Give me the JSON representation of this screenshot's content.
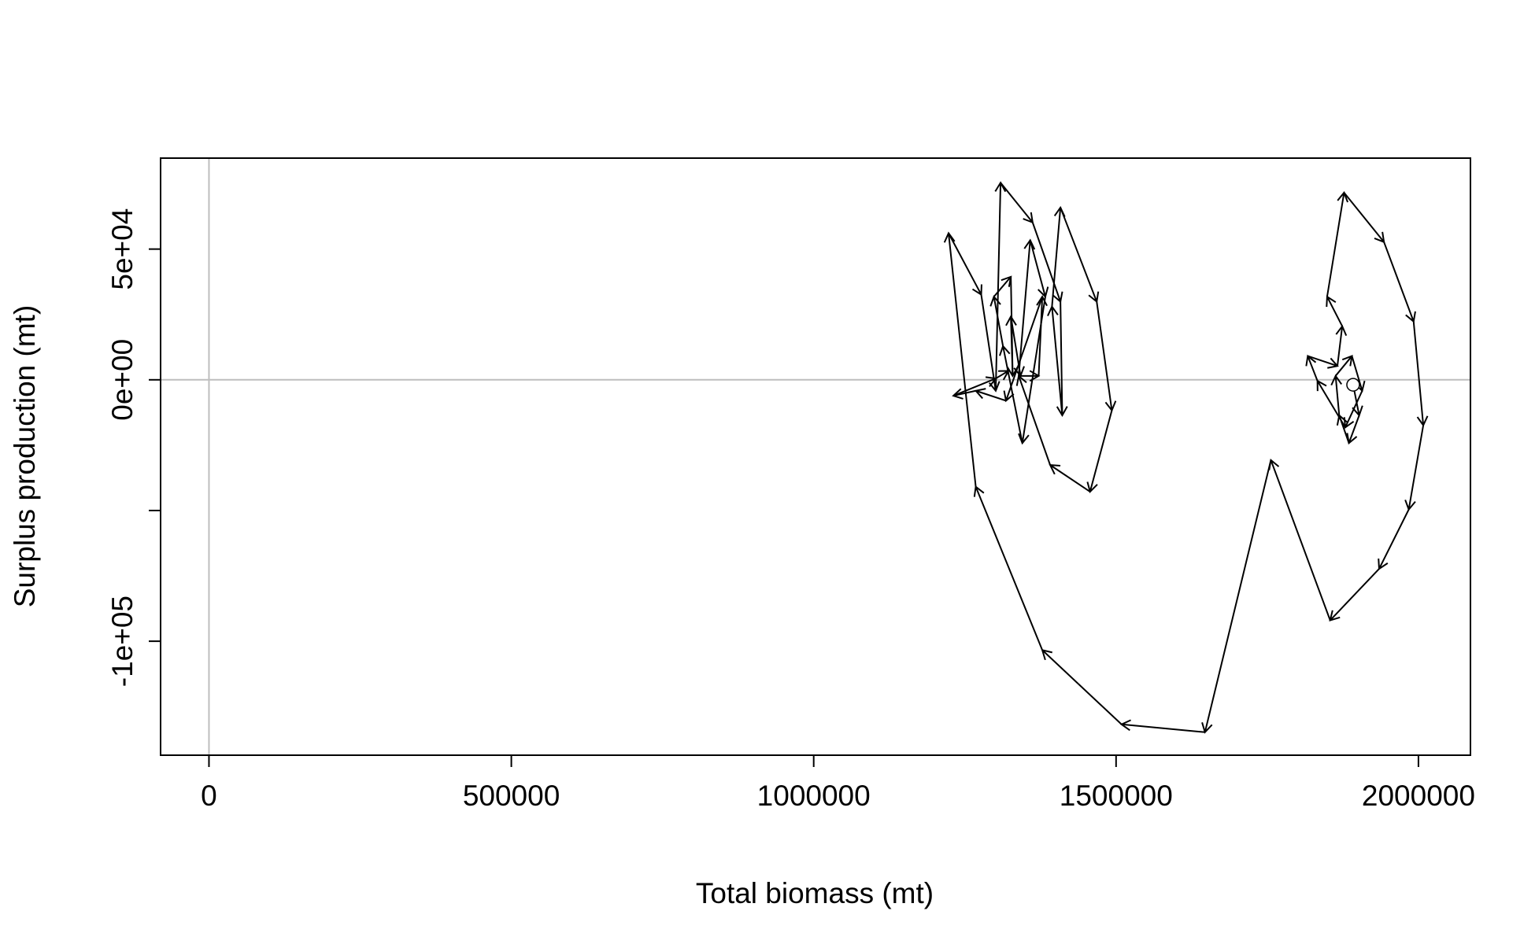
{
  "chart_data": {
    "type": "phase",
    "xlabel": "Total biomass (mt)",
    "ylabel": "Surplus production (mt)",
    "x": [
      1892000,
      1902000,
      1885000,
      1869000,
      1863000,
      1890000,
      1907000,
      1879000,
      1833000,
      1817000,
      1866000,
      1874000,
      1849000,
      1877000,
      1943000,
      1992000,
      2008000,
      1984000,
      1935000,
      1854000,
      1756000,
      1647000,
      1509000,
      1378000,
      1268000,
      1223000,
      1277000,
      1301000,
      1309000,
      1362000,
      1408000,
      1411000,
      1394000,
      1408000,
      1468000,
      1493000,
      1457000,
      1391000,
      1339000,
      1358000,
      1383000,
      1345000,
      1313000,
      1298000,
      1326000,
      1329000,
      1326000,
      1342000,
      1372000,
      1378000,
      1318000,
      1268000,
      1231000,
      1301000,
      1322000
    ],
    "values": [
      -1900,
      -13600,
      -24200,
      -13600,
      1500,
      9100,
      -4200,
      -18200,
      -400,
      9100,
      5300,
      20500,
      31800,
      71600,
      52700,
      22300,
      -17400,
      -49600,
      -72300,
      -92000,
      -30700,
      -134800,
      -131800,
      -103400,
      -40900,
      56100,
      32600,
      -4200,
      75400,
      60200,
      29900,
      -13600,
      28000,
      65900,
      29900,
      -11700,
      -42800,
      -32600,
      1500,
      53400,
      31800,
      -24200,
      12900,
      31800,
      39400,
      1500,
      24200,
      1500,
      1500,
      31800,
      -8000,
      -4200,
      -6100,
      500,
      3400
    ],
    "color": "#000000",
    "xlim": [
      -80000,
      2086000
    ],
    "xticks": [
      0,
      500000,
      1000000,
      1500000,
      2000000
    ],
    "ylim": [
      -143600,
      84800
    ],
    "yticks": [
      {
        "value": -100000,
        "label": "-1e+05"
      },
      {
        "value": 0,
        "label": "0e+00"
      },
      {
        "value": 50000,
        "label": "5e+04"
      }
    ],
    "yticks_unlabeled": [
      -50000
    ],
    "vline": 0,
    "hline": 0,
    "reference_color": "#bebebe"
  }
}
